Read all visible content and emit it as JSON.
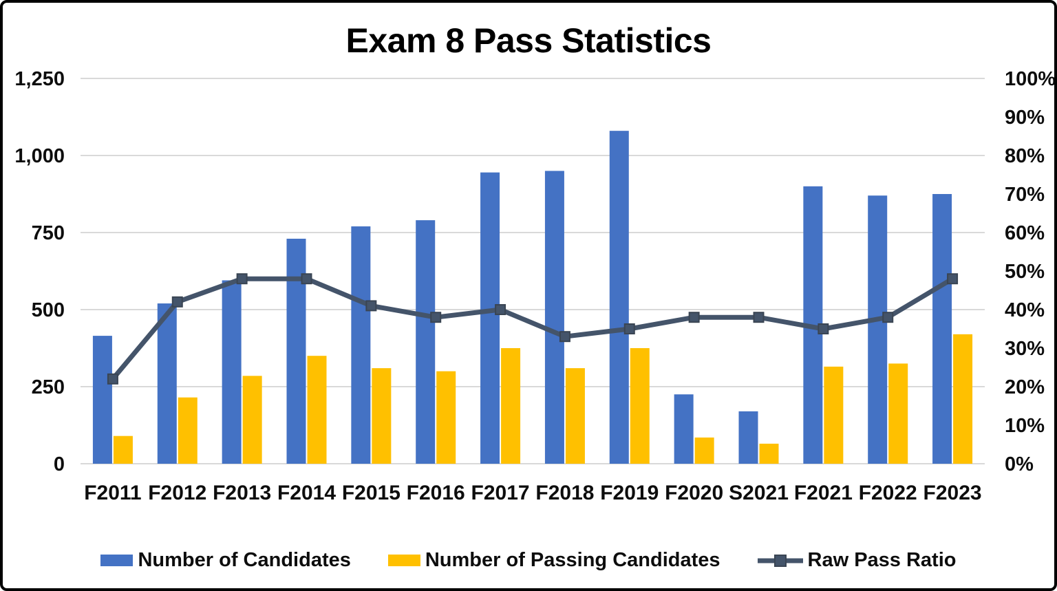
{
  "chart_data": {
    "type": "bar",
    "title": "Exam 8 Pass Statistics",
    "categories": [
      "F2011",
      "F2012",
      "F2013",
      "F2014",
      "F2015",
      "F2016",
      "F2017",
      "F2018",
      "F2019",
      "F2020",
      "S2021",
      "F2021",
      "F2022",
      "F2023"
    ],
    "series": [
      {
        "name": "Number of Candidates",
        "type": "bar",
        "axis": "left",
        "color": "#4472C4",
        "values": [
          415,
          520,
          595,
          730,
          770,
          790,
          945,
          950,
          1080,
          225,
          170,
          900,
          870,
          875
        ]
      },
      {
        "name": "Number of Passing Candidates",
        "type": "bar",
        "axis": "left",
        "color": "#FFC000",
        "values": [
          90,
          215,
          285,
          350,
          310,
          300,
          375,
          310,
          375,
          85,
          65,
          315,
          325,
          420
        ]
      },
      {
        "name": "Raw Pass Ratio",
        "type": "line",
        "axis": "right",
        "color": "#44546A",
        "marker_edge_color": "#3A4553",
        "values": [
          22,
          42,
          48,
          48,
          41,
          38,
          40,
          33,
          35,
          38,
          38,
          35,
          38,
          48
        ]
      }
    ],
    "left_axis": {
      "min": 0,
      "max": 1250,
      "step": 250,
      "tick_labels": [
        "0",
        "250",
        "500",
        "750",
        "1,000",
        "1,250"
      ]
    },
    "right_axis": {
      "min": 0,
      "max": 100,
      "step": 10,
      "unit": "%",
      "tick_labels": [
        "0%",
        "10%",
        "20%",
        "30%",
        "40%",
        "50%",
        "60%",
        "70%",
        "80%",
        "90%",
        "100%"
      ]
    },
    "grid": true,
    "gridline_color": "#D9D9D9",
    "text_color": "#0d0d0d",
    "legend_position": "bottom"
  }
}
